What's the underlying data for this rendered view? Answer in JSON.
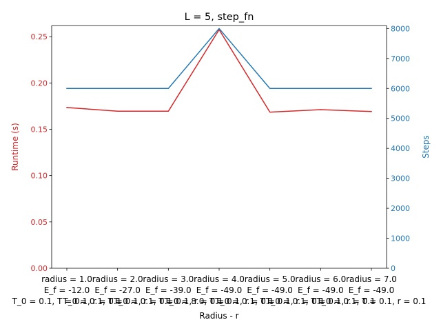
{
  "chart_data": {
    "type": "line",
    "title": "L = 5, step_fn",
    "xlabel": "Radius - r",
    "ylabel_left": "Runtime (s)",
    "ylabel_right": "Steps",
    "left_color": "#d62728",
    "right_color": "#1f77b4",
    "categories": [
      [
        "radius = 1.0",
        "E_f = -12.0",
        "T_0 = 0.1, T = 0.1, r = 0.1"
      ],
      [
        "radius = 2.0",
        "E_f = -27.0",
        "T_0 = 0.1, T = 0.1, r = 0.1"
      ],
      [
        "radius = 3.0",
        "E_f = -39.0",
        "T_0 = 0.1, T = 0.1, r = 0.1"
      ],
      [
        "radius = 4.0",
        "E_f = -49.0",
        "T_0 = 8.0, T = 0.1, r = 0.1"
      ],
      [
        "radius = 5.0",
        "E_f = -49.0",
        "T_0 = 0.1, T = 0.1, r = 0.1"
      ],
      [
        "radius = 6.0",
        "E_f = -49.0",
        "T_0 = 0.1, T = 0.1, r = 0.1"
      ],
      [
        "radius = 7.0",
        "E_f = -49.0",
        "T_0 = 0.1, T = 0.1, r = 0.1"
      ]
    ],
    "series": [
      {
        "name": "Runtime (s)",
        "axis": "left",
        "values": [
          0.1735,
          0.1695,
          0.1695,
          0.2575,
          0.1685,
          0.1712,
          0.1692
        ]
      },
      {
        "name": "Steps",
        "axis": "right",
        "values": [
          6000,
          6000,
          6000,
          8000,
          6000,
          6000,
          6000
        ]
      }
    ],
    "ylim_left": [
      0,
      0.262
    ],
    "yticks_left": [
      "0.00",
      "0.05",
      "0.10",
      "0.15",
      "0.20",
      "0.25"
    ],
    "ylim_right": [
      0,
      8100
    ],
    "yticks_right": [
      "0",
      "1000",
      "2000",
      "3000",
      "4000",
      "5000",
      "6000",
      "7000",
      "8000"
    ],
    "grid": false,
    "legend": "none"
  }
}
